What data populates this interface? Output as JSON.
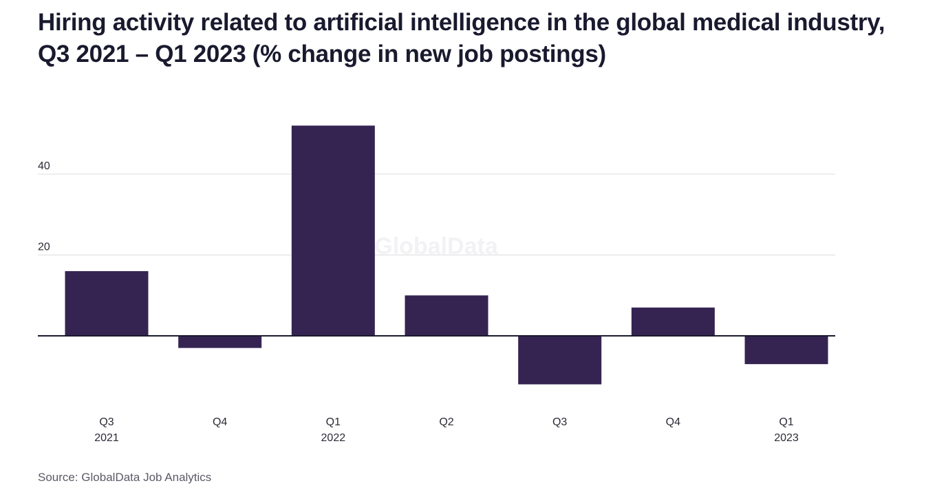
{
  "chart_data": {
    "type": "bar",
    "title": "Hiring activity related to artificial intelligence in the global medical industry, Q3 2021 – Q1 2023 (% change in new job postings)",
    "categories": [
      {
        "quarter": "Q3",
        "year": "2021"
      },
      {
        "quarter": "Q4",
        "year": ""
      },
      {
        "quarter": "Q1",
        "year": "2022"
      },
      {
        "quarter": "Q2",
        "year": ""
      },
      {
        "quarter": "Q3",
        "year": ""
      },
      {
        "quarter": "Q4",
        "year": ""
      },
      {
        "quarter": "Q1",
        "year": "2023"
      }
    ],
    "values": [
      16,
      -3,
      52,
      10,
      -12,
      7,
      -7
    ],
    "yticks": [
      "20",
      "40"
    ],
    "ytick_values": [
      20,
      40
    ],
    "ylim": [
      -20,
      56
    ],
    "xlabel": "",
    "ylabel": "",
    "grid": true,
    "bar_color": "#352452",
    "watermark": "GlobalData",
    "source": "Source: GlobalData Job Analytics"
  }
}
